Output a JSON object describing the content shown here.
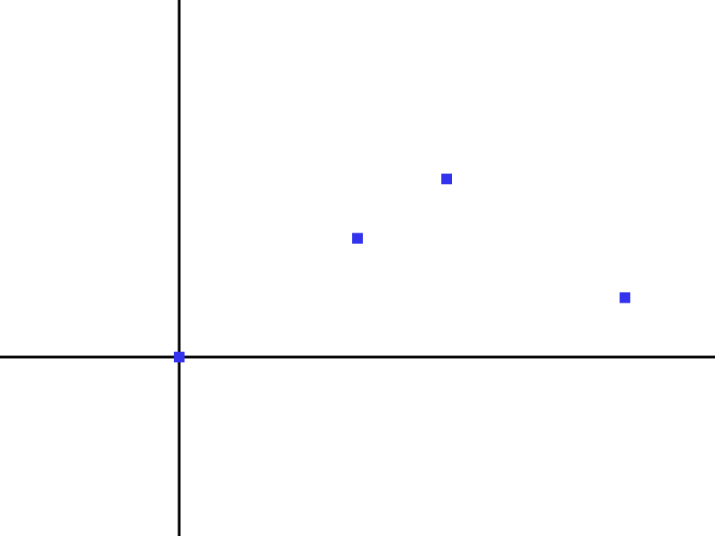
{
  "chart_data": {
    "type": "scatter",
    "title": "",
    "xlabel": "",
    "ylabel": "",
    "xlim": [
      -3,
      9
    ],
    "ylim": [
      -3,
      6
    ],
    "grid": false,
    "series": [
      {
        "color": "#3333ee",
        "marker": "square",
        "points": [
          {
            "x": 0,
            "y": 0
          },
          {
            "x": 3,
            "y": 2
          },
          {
            "x": 4.5,
            "y": 3
          },
          {
            "x": 7.5,
            "y": 1
          }
        ]
      }
    ],
    "axis_color": "#000000"
  }
}
